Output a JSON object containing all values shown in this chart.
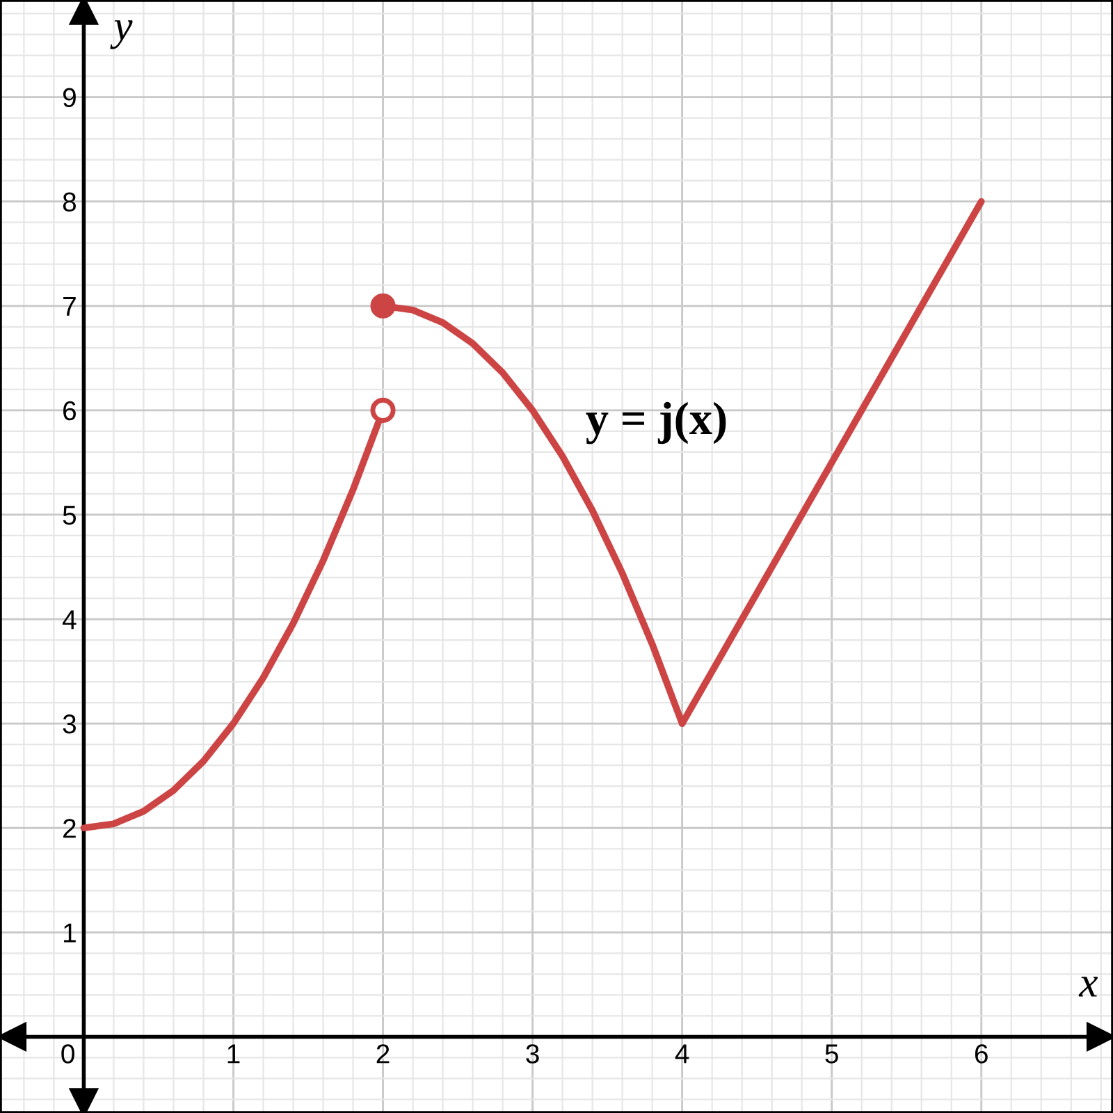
{
  "chart_data": {
    "type": "line",
    "xlabel": "x",
    "ylabel": "y",
    "xlim": [
      -0.56,
      6.88
    ],
    "ylim": [
      -0.73,
      9.93
    ],
    "xticks": [
      0,
      1,
      2,
      3,
      4,
      5,
      6
    ],
    "yticks": [
      1,
      2,
      3,
      4,
      5,
      6,
      7,
      8,
      9
    ],
    "grid": true,
    "marker": "none",
    "line_style": "solid",
    "series": [
      {
        "color": "#cc4444",
        "x": [
          0,
          0.2,
          0.4,
          0.6,
          0.8,
          1,
          1.2,
          1.4,
          1.6,
          1.8,
          2
        ],
        "values": [
          2,
          2.04,
          2.16,
          2.36,
          2.64,
          3,
          3.44,
          3.96,
          4.56,
          5.24,
          6
        ]
      },
      {
        "color": "#cc4444",
        "x": [
          2,
          2.2,
          2.4,
          2.6,
          2.8,
          3,
          3.2,
          3.4,
          3.6,
          3.8,
          4
        ],
        "values": [
          7,
          6.96,
          6.84,
          6.64,
          6.36,
          6,
          5.56,
          5.04,
          4.44,
          3.76,
          3
        ]
      },
      {
        "color": "#cc4444",
        "x": [
          4,
          6
        ],
        "values": [
          3,
          8
        ]
      },
      {
        "type": "scatter",
        "color": "#cc4444",
        "marker": "circle",
        "x": [
          2
        ],
        "values": [
          7
        ]
      },
      {
        "type": "scatter",
        "color": "#cc4444",
        "marker": "circle",
        "colors": [
          "#ffffff"
        ],
        "x": [
          2
        ],
        "values": [
          6
        ]
      }
    ],
    "annotations": [
      "y = j(x)"
    ]
  }
}
